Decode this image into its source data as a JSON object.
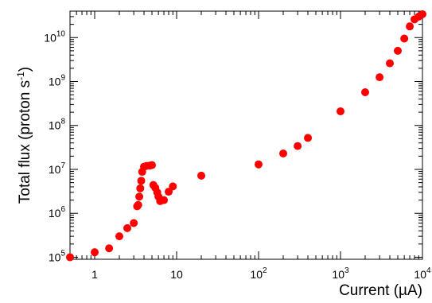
{
  "chart_data": {
    "type": "scatter",
    "title": "",
    "xlabel": "Current (µA)",
    "ylabel_main": "Total flux (proton s",
    "ylabel_sup": "-1",
    "ylabel_close": ")",
    "xscale": "log",
    "yscale": "log",
    "xlim": [
      0.5,
      10000
    ],
    "ylim": [
      90000,
      40000000000
    ],
    "grid": false,
    "legend": "none",
    "marker_color": "#ff0000",
    "x_tick_labels": [
      {
        "value": 1,
        "base": "1",
        "exp": ""
      },
      {
        "value": 10,
        "base": "10",
        "exp": ""
      },
      {
        "value": 100,
        "base": "10",
        "exp": "2"
      },
      {
        "value": 1000,
        "base": "10",
        "exp": "3"
      },
      {
        "value": 10000,
        "base": "10",
        "exp": "4"
      }
    ],
    "y_tick_labels": [
      {
        "value": 100000,
        "base": "10",
        "exp": "5"
      },
      {
        "value": 1000000,
        "base": "10",
        "exp": "6"
      },
      {
        "value": 10000000,
        "base": "10",
        "exp": "7"
      },
      {
        "value": 100000000,
        "base": "10",
        "exp": "8"
      },
      {
        "value": 1000000000,
        "base": "10",
        "exp": "9"
      },
      {
        "value": 10000000000,
        "base": "10",
        "exp": "10"
      }
    ],
    "series": [
      {
        "points": [
          {
            "x": 0.5,
            "y": 100000
          },
          {
            "x": 1.0,
            "y": 130000
          },
          {
            "x": 1.5,
            "y": 160000
          },
          {
            "x": 2.0,
            "y": 300000
          },
          {
            "x": 2.5,
            "y": 460000
          },
          {
            "x": 3.0,
            "y": 600000
          },
          {
            "x": 3.3,
            "y": 1450000
          },
          {
            "x": 3.4,
            "y": 1550000
          },
          {
            "x": 3.5,
            "y": 2400000
          },
          {
            "x": 3.6,
            "y": 3700000
          },
          {
            "x": 3.7,
            "y": 5500000
          },
          {
            "x": 3.8,
            "y": 8800000
          },
          {
            "x": 4.0,
            "y": 11500000
          },
          {
            "x": 4.3,
            "y": 12000000
          },
          {
            "x": 4.7,
            "y": 12200000
          },
          {
            "x": 5.0,
            "y": 12500000
          },
          {
            "x": 5.2,
            "y": 4400000
          },
          {
            "x": 5.5,
            "y": 3800000
          },
          {
            "x": 5.8,
            "y": 3000000
          },
          {
            "x": 6.0,
            "y": 2400000
          },
          {
            "x": 6.3,
            "y": 1900000
          },
          {
            "x": 7.0,
            "y": 2000000
          },
          {
            "x": 8.0,
            "y": 3100000
          },
          {
            "x": 9.0,
            "y": 4100000
          },
          {
            "x": 20,
            "y": 7200000
          },
          {
            "x": 100,
            "y": 13000000
          },
          {
            "x": 200,
            "y": 23000000
          },
          {
            "x": 300,
            "y": 34000000
          },
          {
            "x": 400,
            "y": 52000000
          },
          {
            "x": 1000,
            "y": 210000000
          },
          {
            "x": 2000,
            "y": 570000000
          },
          {
            "x": 3000,
            "y": 1250000000
          },
          {
            "x": 4000,
            "y": 2600000000
          },
          {
            "x": 5000,
            "y": 5000000000
          },
          {
            "x": 6000,
            "y": 9500000000
          },
          {
            "x": 7000,
            "y": 18000000000
          },
          {
            "x": 8000,
            "y": 26000000000
          },
          {
            "x": 9000,
            "y": 30000000000
          },
          {
            "x": 10000,
            "y": 34000000000
          }
        ]
      }
    ]
  }
}
